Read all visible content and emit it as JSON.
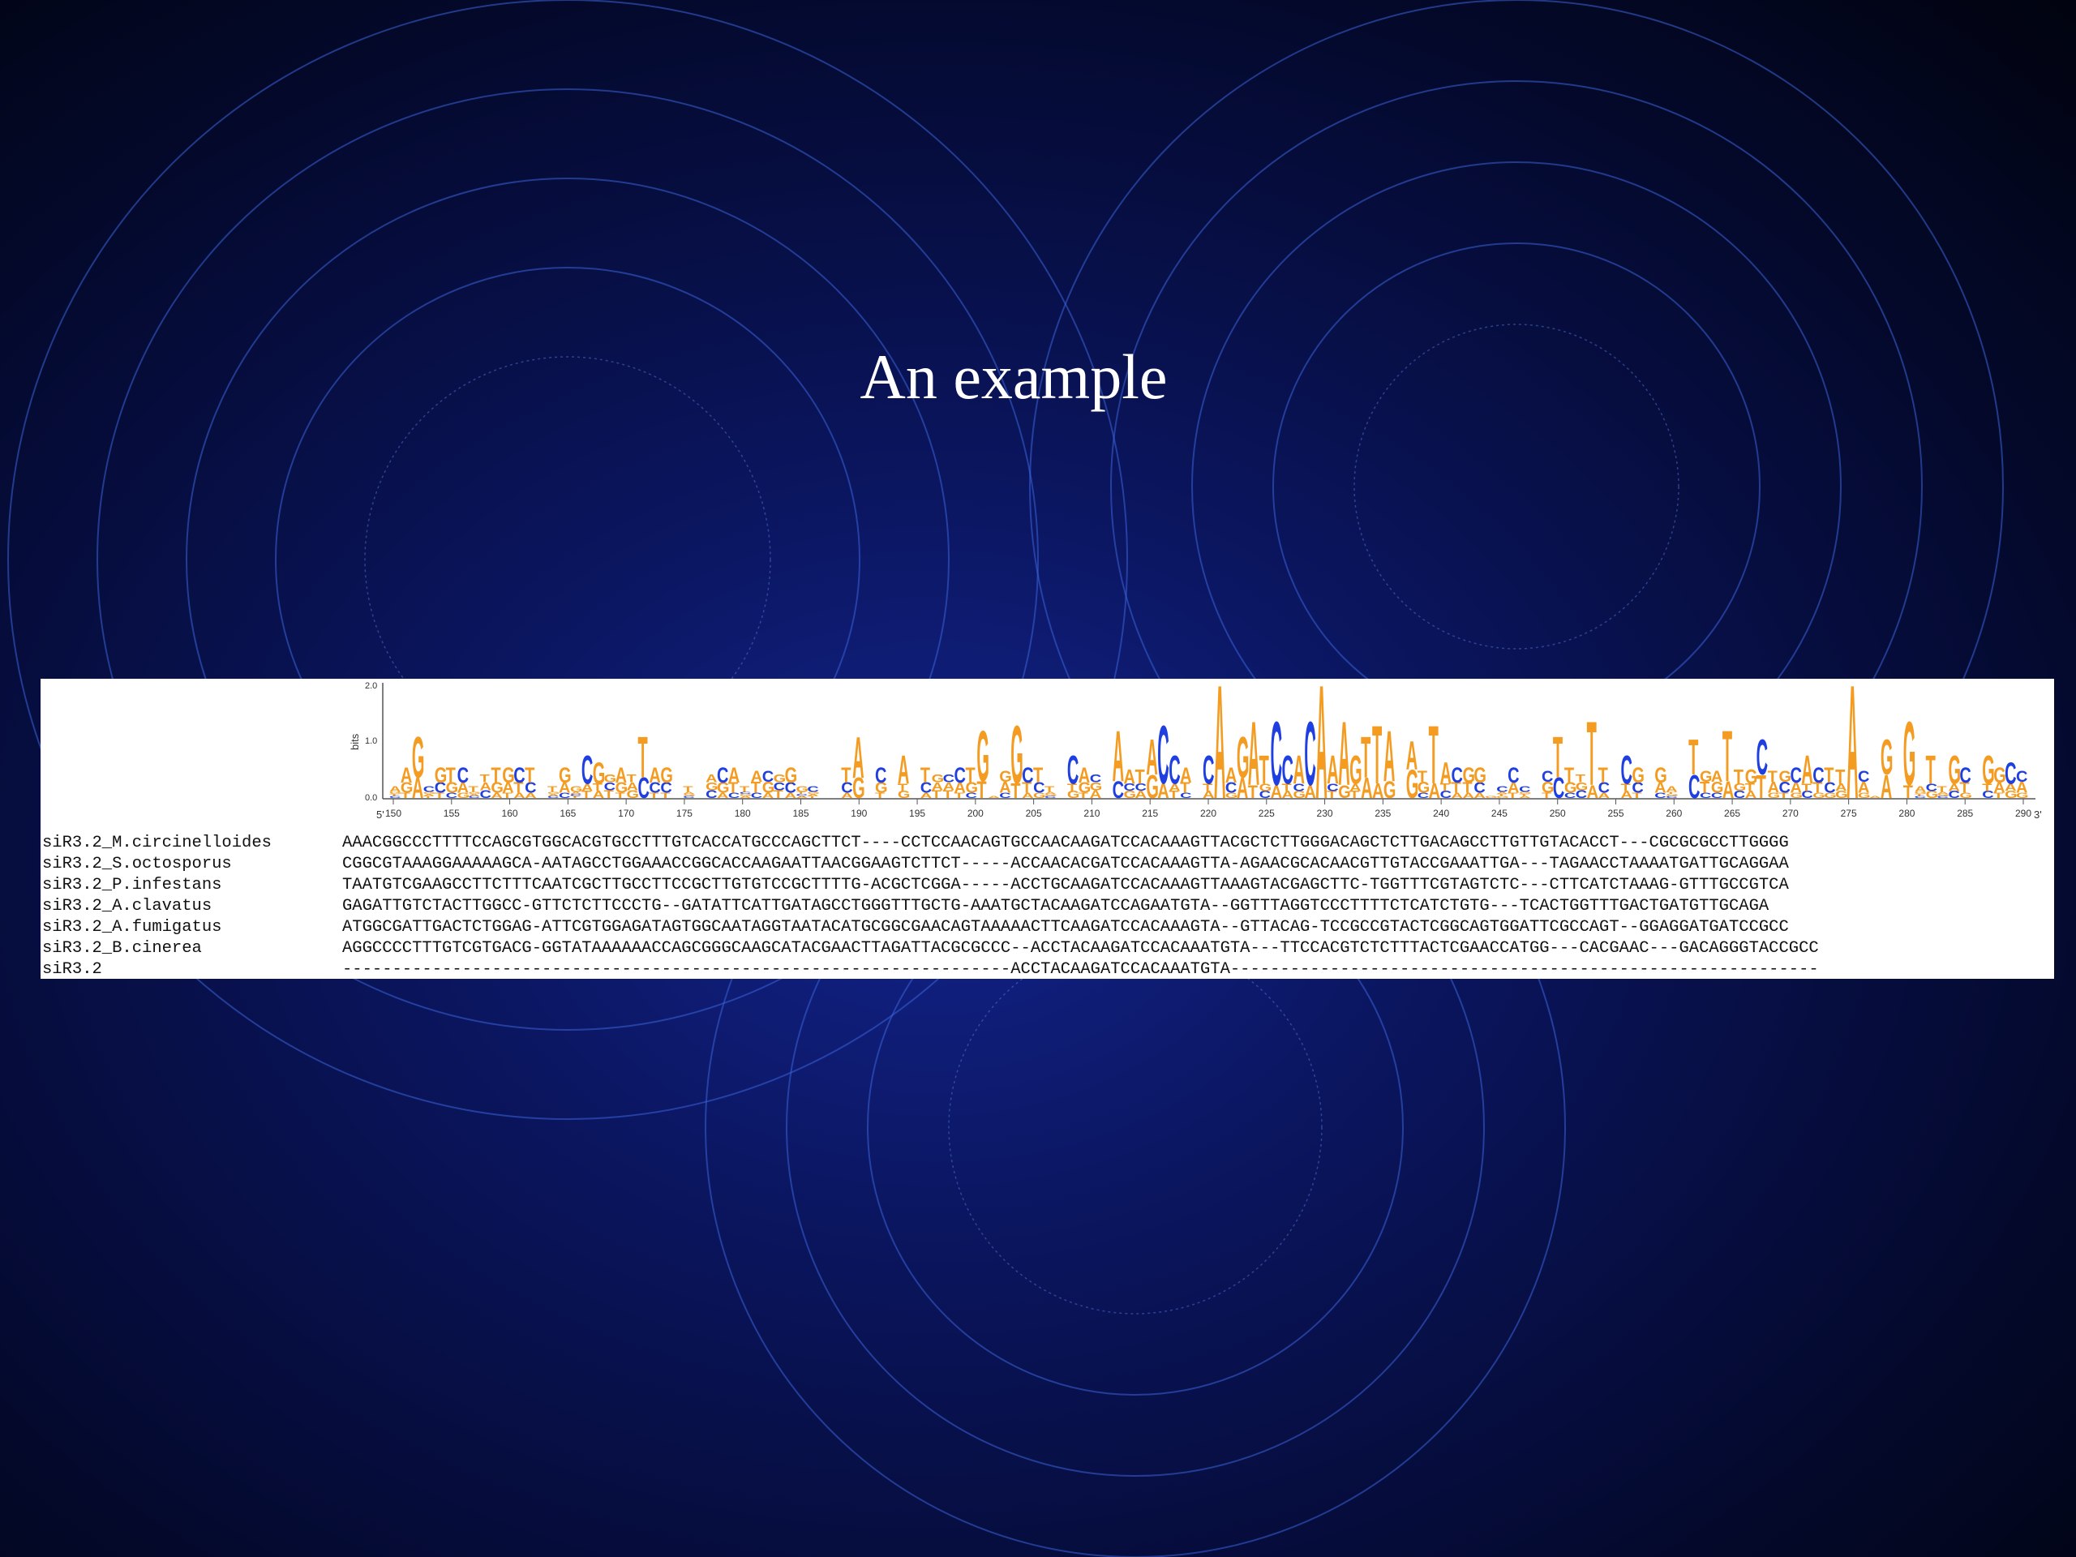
{
  "slide": {
    "title": "An example"
  },
  "logo": {
    "ylabel": "bits",
    "yticks": [
      "2.0",
      "1.0",
      "0.0"
    ],
    "end5": "5'",
    "end3": "3'",
    "xticks": [
      "150",
      "155",
      "160",
      "165",
      "170",
      "175",
      "180",
      "185",
      "190",
      "195",
      "200",
      "205",
      "210",
      "215",
      "220",
      "225",
      "230",
      "235",
      "240",
      "245",
      "250",
      "255",
      "260",
      "265",
      "270",
      "275",
      "280",
      "285",
      "290"
    ],
    "colors": {
      "A": "#f39c21",
      "C": "#1f3fe0",
      "G": "#f39c21",
      "T": "#f39c21"
    }
  },
  "alignment": {
    "rows": [
      {
        "name": "siR3.2_M.circinelloides",
        "seq": "AAACGGCCCTTTTCCAGCGTGGCACGTGCCTTTGTCACCATGCCCAGCTTCT----CCTCCAACAGTGCCAACAAGATCCACAAAGTTACGCTCTTGGGACAGCTCTTGACAGCCTTGTTGTACACCT---CGCGCGCCTTGGGG"
      },
      {
        "name": "siR3.2_S.octosporus",
        "seq": "CGGCGTAAAGGAAAAAGCA-AATAGCCTGGAAACCGGCACCAAGAATTAACGGAAGTCTTCT-----ACCAACACGATCCACAAAGTTA-AGAACGCACAACGTTGTACCGAAATTGA---TAGAACCTAAAATGATTGCAGGAA"
      },
      {
        "name": "siR3.2_P.infestans",
        "seq": "TAATGTCGAAGCCTTCTTTCAATCGCTTGCCTTCCGCTTGTGTCCGCTTTTG-ACGCTCGGA-----ACCTGCAAGATCCACAAAGTTAAAGTACGAGCTTC-TGGTTTCGTAGTCTC---CTTCATCTAAAG-GTTTGCCGTCA"
      },
      {
        "name": "siR3.2_A.clavatus",
        "seq": "GAGATTGTCTACTTGGCC-GTTCTCTTCCCTG--GATATTCATTGATAGCCTGGGTTTGCTG-AAATGCTACAAGATCCAGAATGTA--GGTTTAGGTCCCTTTTCTCATCTGTG---TCACTGGTTTGACTGATGTTGCAGA"
      },
      {
        "name": "siR3.2_A.fumigatus",
        "seq": "ATGGCGATTGACTCTGGAG-ATTCGTGGAGATAGTGGCAATAGGTAATACATGCGGCGAACAGTAAAAACTTCAAGATCCACAAAGTA--GTTACAG-TCCGCCGTACTCGGCAGTGGATTCGCCAGT--GGAGGATGATCCGCC"
      },
      {
        "name": "siR3.2_B.cinerea",
        "seq": "AGGCCCCTTTGTCGTGACG-GGTATAAAAAACCAGCGGGCAAGCATACGAACTTAGATTACGCGCCC--ACCTACAAGATCCACAAATGTA---TTCCACGTCTCTTTACTCGAACCATGG---CACGAAC---GACAGGGTACCGCC"
      },
      {
        "name": "siR3.2",
        "seq": "-------------------------------------------------------------------ACCTACAAGATCCACAAATGTA-----------------------------------------------------------"
      }
    ]
  }
}
